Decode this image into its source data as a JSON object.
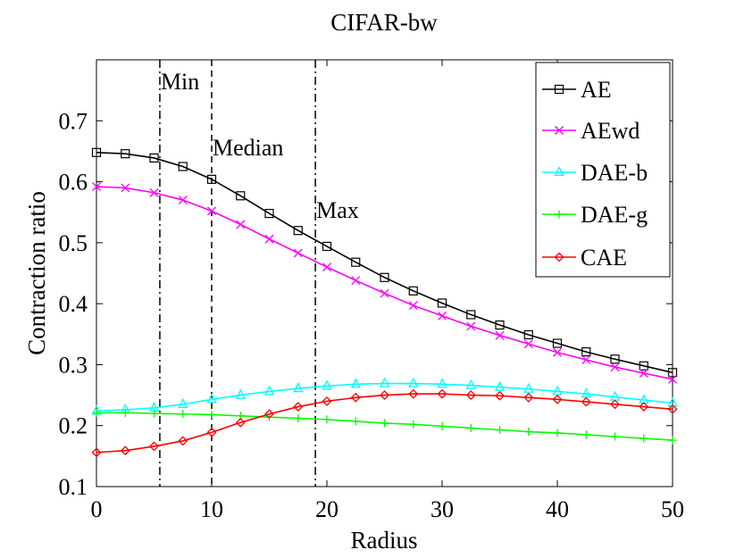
{
  "chart_data": {
    "type": "line",
    "title": "CIFAR-bw",
    "xlabel": "Radius",
    "ylabel": "Contraction ratio",
    "xlim": [
      0,
      50
    ],
    "ylim": [
      0.1,
      0.8
    ],
    "xticks": [
      0,
      10,
      20,
      30,
      40,
      50
    ],
    "yticks": [
      0.1,
      0.2,
      0.3,
      0.4,
      0.5,
      0.6,
      0.7
    ],
    "xtick_labels": [
      "0",
      "10",
      "20",
      "30",
      "40",
      "50"
    ],
    "ytick_labels": [
      "0.1",
      "0.2",
      "0.3",
      "0.4",
      "0.5",
      "0.6",
      "0.7"
    ],
    "grid": false,
    "legend_position": "top-right",
    "x": [
      0,
      2.5,
      5,
      7.5,
      10,
      12.5,
      15,
      17.5,
      20,
      22.5,
      25,
      27.5,
      30,
      32.5,
      35,
      37.5,
      40,
      42.5,
      45,
      47.5,
      50
    ],
    "series": [
      {
        "name": "AE",
        "color": "#000000",
        "marker": "square",
        "values": [
          0.648,
          0.646,
          0.639,
          0.625,
          0.604,
          0.577,
          0.548,
          0.52,
          0.494,
          0.468,
          0.443,
          0.421,
          0.401,
          0.382,
          0.365,
          0.349,
          0.335,
          0.321,
          0.309,
          0.298,
          0.287
        ]
      },
      {
        "name": "AEwd",
        "color": "#ff00ff",
        "marker": "x",
        "values": [
          0.592,
          0.59,
          0.582,
          0.57,
          0.552,
          0.53,
          0.506,
          0.483,
          0.46,
          0.438,
          0.417,
          0.397,
          0.38,
          0.363,
          0.348,
          0.334,
          0.32,
          0.308,
          0.296,
          0.286,
          0.276
        ]
      },
      {
        "name": "DAE-b",
        "color": "#00ffff",
        "marker": "triangle",
        "values": [
          0.224,
          0.226,
          0.229,
          0.235,
          0.243,
          0.25,
          0.256,
          0.261,
          0.265,
          0.268,
          0.269,
          0.269,
          0.268,
          0.266,
          0.263,
          0.26,
          0.256,
          0.252,
          0.247,
          0.242,
          0.237
        ]
      },
      {
        "name": "DAE-g",
        "color": "#00ff00",
        "marker": "plus",
        "values": [
          0.221,
          0.221,
          0.22,
          0.219,
          0.218,
          0.216,
          0.214,
          0.212,
          0.21,
          0.207,
          0.204,
          0.202,
          0.199,
          0.196,
          0.193,
          0.19,
          0.188,
          0.185,
          0.182,
          0.179,
          0.176
        ]
      },
      {
        "name": "CAE",
        "color": "#ff0000",
        "marker": "diamond",
        "values": [
          0.156,
          0.159,
          0.166,
          0.175,
          0.189,
          0.205,
          0.219,
          0.231,
          0.24,
          0.246,
          0.25,
          0.252,
          0.252,
          0.25,
          0.249,
          0.246,
          0.243,
          0.239,
          0.235,
          0.231,
          0.227
        ]
      }
    ],
    "annotations": [
      {
        "label": "Min",
        "x": 5.5,
        "style": "dash-dot"
      },
      {
        "label": "Median",
        "x": 10,
        "style": "dashed"
      },
      {
        "label": "Max",
        "x": 19,
        "style": "dash-dot"
      }
    ]
  }
}
